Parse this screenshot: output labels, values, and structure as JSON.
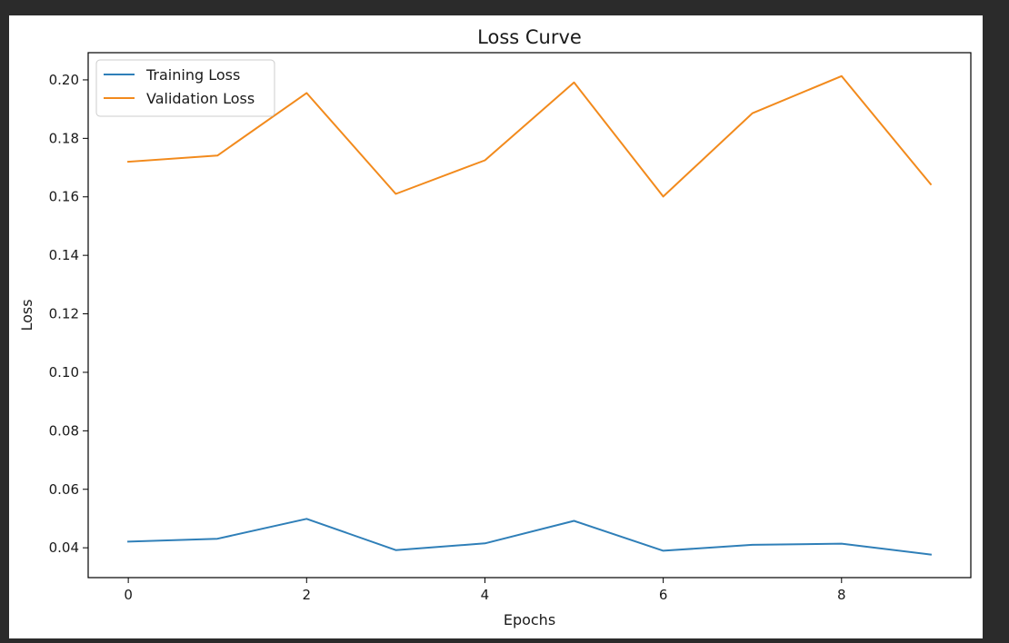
{
  "colors": {
    "training": "#2f7fb8",
    "validation": "#f28a1c"
  },
  "chart_data": {
    "type": "line",
    "title": "Loss Curve",
    "xlabel": "Epochs",
    "ylabel": "Loss",
    "x": [
      0,
      1,
      2,
      3,
      4,
      5,
      6,
      7,
      8,
      9
    ],
    "xticks": [
      0,
      2,
      4,
      6,
      8
    ],
    "xtick_labels": [
      "0",
      "2",
      "4",
      "6",
      "8"
    ],
    "xlim": [
      -0.45,
      9.45
    ],
    "yticks": [
      0.04,
      0.06,
      0.08,
      0.1,
      0.12,
      0.14,
      0.16,
      0.18,
      0.2
    ],
    "ytick_labels": [
      "0.04",
      "0.06",
      "0.08",
      "0.10",
      "0.12",
      "0.14",
      "0.16",
      "0.18",
      "0.20"
    ],
    "ylim": [
      0.0298,
      0.2093
    ],
    "grid": false,
    "legend_position": "upper left",
    "series": [
      {
        "name": "Training Loss",
        "color_key": "training",
        "values": [
          0.0421,
          0.0431,
          0.0499,
          0.0392,
          0.0415,
          0.0492,
          0.039,
          0.041,
          0.0414,
          0.0377
        ]
      },
      {
        "name": "Validation Loss",
        "color_key": "validation",
        "values": [
          0.172,
          0.1741,
          0.1955,
          0.161,
          0.1725,
          0.1991,
          0.1601,
          0.1886,
          0.2013,
          0.1643
        ]
      }
    ]
  }
}
